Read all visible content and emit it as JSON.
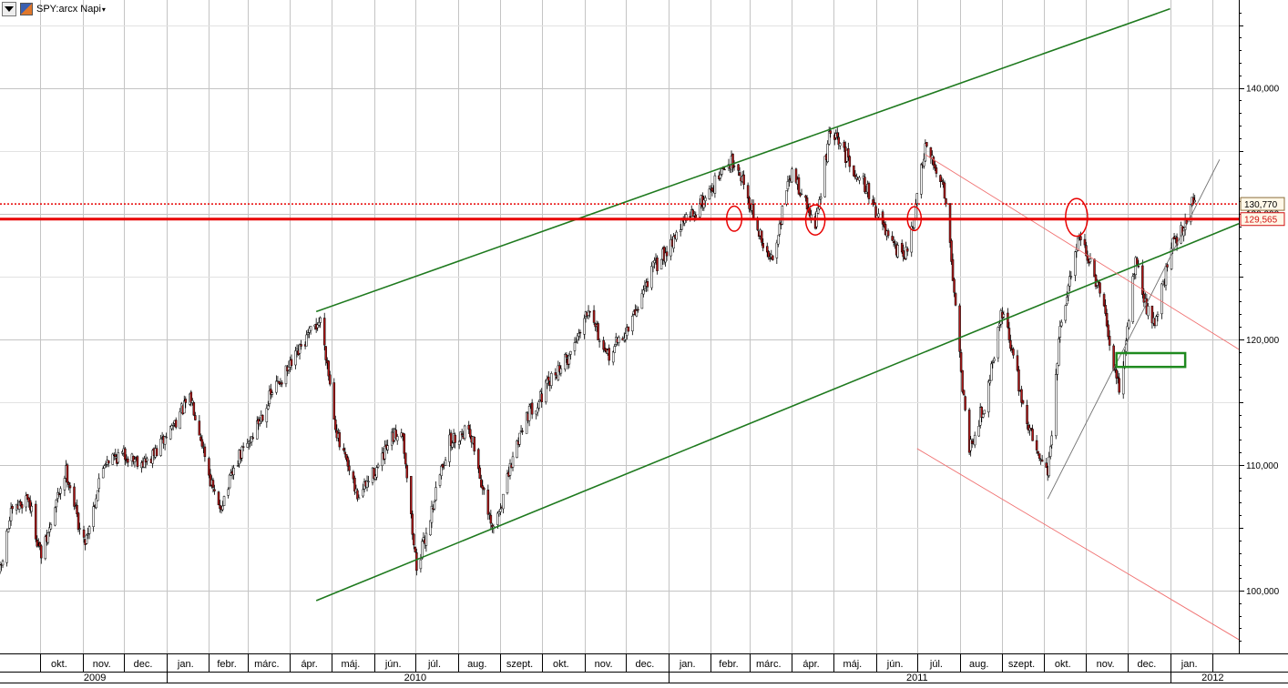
{
  "header": {
    "symbol_label": "SPY:arcx Napi",
    "caret": "▾",
    "menu_icon": "dropdown-triangle-icon",
    "symbol_icon": "instrument-icon"
  },
  "chart_data": {
    "type": "candlestick",
    "title": "SPY:arcx Napi",
    "y_axis": {
      "position": "right",
      "ylim": [
        95,
        147
      ],
      "ticks": [
        100,
        110,
        120,
        130,
        140
      ],
      "tick_labels": [
        "100,000",
        "110,000",
        "120,000",
        "130,000",
        "140,000"
      ]
    },
    "x_axis": {
      "xlim": [
        "2009-09-02",
        "2012-02-20"
      ],
      "month_labels": [
        {
          "label": "okt.",
          "date": "2009-10-15"
        },
        {
          "label": "nov.",
          "date": "2009-11-15"
        },
        {
          "label": "dec.",
          "date": "2009-12-15"
        },
        {
          "label": "jan.",
          "date": "2010-01-15"
        },
        {
          "label": "febr.",
          "date": "2010-02-14"
        },
        {
          "label": "márc.",
          "date": "2010-03-15"
        },
        {
          "label": "ápr.",
          "date": "2010-04-15"
        },
        {
          "label": "máj.",
          "date": "2010-05-15"
        },
        {
          "label": "jún.",
          "date": "2010-06-15"
        },
        {
          "label": "júl.",
          "date": "2010-07-15"
        },
        {
          "label": "aug.",
          "date": "2010-08-15"
        },
        {
          "label": "szept.",
          "date": "2010-09-15"
        },
        {
          "label": "okt.",
          "date": "2010-10-15"
        },
        {
          "label": "nov.",
          "date": "2010-11-15"
        },
        {
          "label": "dec.",
          "date": "2010-12-15"
        },
        {
          "label": "jan.",
          "date": "2011-01-15"
        },
        {
          "label": "febr.",
          "date": "2011-02-14"
        },
        {
          "label": "márc.",
          "date": "2011-03-15"
        },
        {
          "label": "ápr.",
          "date": "2011-04-15"
        },
        {
          "label": "máj.",
          "date": "2011-05-15"
        },
        {
          "label": "jún.",
          "date": "2011-06-15"
        },
        {
          "label": "júl.",
          "date": "2011-07-15"
        },
        {
          "label": "aug.",
          "date": "2011-08-15"
        },
        {
          "label": "szept.",
          "date": "2011-09-15"
        },
        {
          "label": "okt.",
          "date": "2011-10-15"
        },
        {
          "label": "nov.",
          "date": "2011-11-15"
        },
        {
          "label": "dec.",
          "date": "2011-12-15"
        },
        {
          "label": "jan.",
          "date": "2012-01-15"
        }
      ],
      "month_boundaries": [
        "2009-10-01",
        "2009-11-01",
        "2009-12-01",
        "2010-01-01",
        "2010-02-01",
        "2010-03-01",
        "2010-04-01",
        "2010-05-01",
        "2010-06-01",
        "2010-07-01",
        "2010-08-01",
        "2010-09-01",
        "2010-10-01",
        "2010-11-01",
        "2010-12-01",
        "2011-01-01",
        "2011-02-01",
        "2011-03-01",
        "2011-04-01",
        "2011-05-01",
        "2011-06-01",
        "2011-07-01",
        "2011-08-01",
        "2011-09-01",
        "2011-10-01",
        "2011-11-01",
        "2011-12-01",
        "2012-01-01",
        "2012-02-01"
      ],
      "year_labels": [
        {
          "label": "2009",
          "date": "2009-11-10"
        },
        {
          "label": "2010",
          "date": "2010-07-01"
        },
        {
          "label": "2011",
          "date": "2011-07-01"
        },
        {
          "label": "2012",
          "date": "2012-02-01"
        }
      ],
      "year_boundaries": [
        "2010-01-01",
        "2011-01-01",
        "2012-01-01"
      ]
    },
    "grid": true,
    "price_path": [
      [
        "2009-09-02",
        101.5
      ],
      [
        "2009-09-10",
        106
      ],
      [
        "2009-09-22",
        107.5
      ],
      [
        "2009-10-02",
        102.8
      ],
      [
        "2009-10-20",
        109.5
      ],
      [
        "2009-11-02",
        103.8
      ],
      [
        "2009-11-18",
        110.5
      ],
      [
        "2009-12-01",
        110.8
      ],
      [
        "2009-12-18",
        110.2
      ],
      [
        "2010-01-19",
        115.2
      ],
      [
        "2010-02-08",
        106.5
      ],
      [
        "2010-02-25",
        111
      ],
      [
        "2010-03-25",
        116.8
      ],
      [
        "2010-04-23",
        121.5
      ],
      [
        "2010-05-07",
        111.5
      ],
      [
        "2010-05-20",
        107.5
      ],
      [
        "2010-06-04",
        109.8
      ],
      [
        "2010-06-14",
        112
      ],
      [
        "2010-06-21",
        113
      ],
      [
        "2010-07-02",
        102
      ],
      [
        "2010-07-26",
        111.8
      ],
      [
        "2010-08-09",
        113
      ],
      [
        "2010-08-26",
        104.8
      ],
      [
        "2010-09-20",
        114
      ],
      [
        "2010-10-20",
        118.5
      ],
      [
        "2010-11-05",
        122.8
      ],
      [
        "2010-11-16",
        118.5
      ],
      [
        "2010-12-01",
        120.5
      ],
      [
        "2010-12-22",
        125.8
      ],
      [
        "2011-01-14",
        129.5
      ],
      [
        "2011-02-18",
        134.3
      ],
      [
        "2011-03-16",
        126.2
      ],
      [
        "2011-04-01",
        133.2
      ],
      [
        "2011-04-18",
        129.2
      ],
      [
        "2011-04-29",
        136.5
      ],
      [
        "2011-05-20",
        133
      ],
      [
        "2011-06-15",
        127
      ],
      [
        "2011-06-24",
        126.8
      ],
      [
        "2011-07-07",
        135
      ],
      [
        "2011-07-20",
        132.5
      ],
      [
        "2011-08-08",
        111.5
      ],
      [
        "2011-08-18",
        114.5
      ],
      [
        "2011-09-01",
        122.2
      ],
      [
        "2011-09-22",
        112.3
      ],
      [
        "2011-10-04",
        109.5
      ],
      [
        "2011-10-14",
        121.5
      ],
      [
        "2011-10-27",
        128.4
      ],
      [
        "2011-11-10",
        124
      ],
      [
        "2011-11-25",
        116
      ],
      [
        "2011-12-07",
        126
      ],
      [
        "2011-12-19",
        121
      ],
      [
        "2012-01-03",
        127.5
      ],
      [
        "2012-01-13",
        129.5
      ],
      [
        "2012-01-19",
        131.5
      ]
    ],
    "volatility": 0.55,
    "up_color": "#ffffff",
    "down_color": "#b01818",
    "wick_color": "#000000",
    "horizontal_lines": [
      {
        "name": "resistance-solid",
        "price": 129.565,
        "color": "#e80000",
        "style": "solid",
        "width": 3
      },
      {
        "name": "last-price-dotted",
        "price": 130.77,
        "color": "#e80000",
        "style": "dotted",
        "width": 1.5
      }
    ],
    "price_markers": [
      {
        "label": "130,770",
        "price": 130.77,
        "text_color": "#000000",
        "border_color": "#8a6d3b"
      },
      {
        "label": "129,565",
        "price": 129.565,
        "text_color": "#d01010",
        "border_color": "#d01010"
      }
    ],
    "trend_lines": [
      {
        "name": "channel-upper",
        "color": "#1f7a1f",
        "width": 1.6,
        "from": [
          "2010-04-20",
          122.2
        ],
        "to": [
          "2012-01-01",
          146.3
        ]
      },
      {
        "name": "channel-lower",
        "color": "#1f7a1f",
        "width": 1.6,
        "from": [
          "2010-04-20",
          99.2
        ],
        "to": [
          "2012-02-20",
          129.2
        ]
      },
      {
        "name": "down-channel-upper",
        "color": "#f07070",
        "width": 0.9,
        "from": [
          "2011-07-07",
          134.7
        ],
        "to": [
          "2012-02-20",
          119.2
        ]
      },
      {
        "name": "down-channel-lower",
        "color": "#f07070",
        "width": 0.9,
        "from": [
          "2011-07-01",
          111.3
        ],
        "to": [
          "2012-02-20",
          96.1
        ]
      },
      {
        "name": "support-line",
        "color": "#707070",
        "width": 0.9,
        "from": [
          "2011-10-04",
          107.3
        ],
        "to": [
          "2012-02-06",
          134.3
        ]
      }
    ],
    "circle_annotations": [
      {
        "date": "2011-02-18",
        "price": 129.6,
        "radius_days": 5.5,
        "radius_price": 1.0
      },
      {
        "date": "2011-04-18",
        "price": 129.5,
        "radius_days": 7,
        "radius_price": 1.2
      },
      {
        "date": "2011-06-29",
        "price": 129.6,
        "radius_days": 5,
        "radius_price": 0.95
      },
      {
        "date": "2011-10-25",
        "price": 129.7,
        "radius_days": 8,
        "radius_price": 1.5
      }
    ],
    "box_annotations": [
      {
        "from": [
          "2011-11-23",
          118.9
        ],
        "to": [
          "2012-01-12",
          117.8
        ],
        "color": "#1f8a1f"
      }
    ],
    "colors": {
      "grid": "#c4c4c4",
      "axis": "#000000",
      "resistance": "#e80000",
      "channel": "#1f7a1f"
    }
  }
}
